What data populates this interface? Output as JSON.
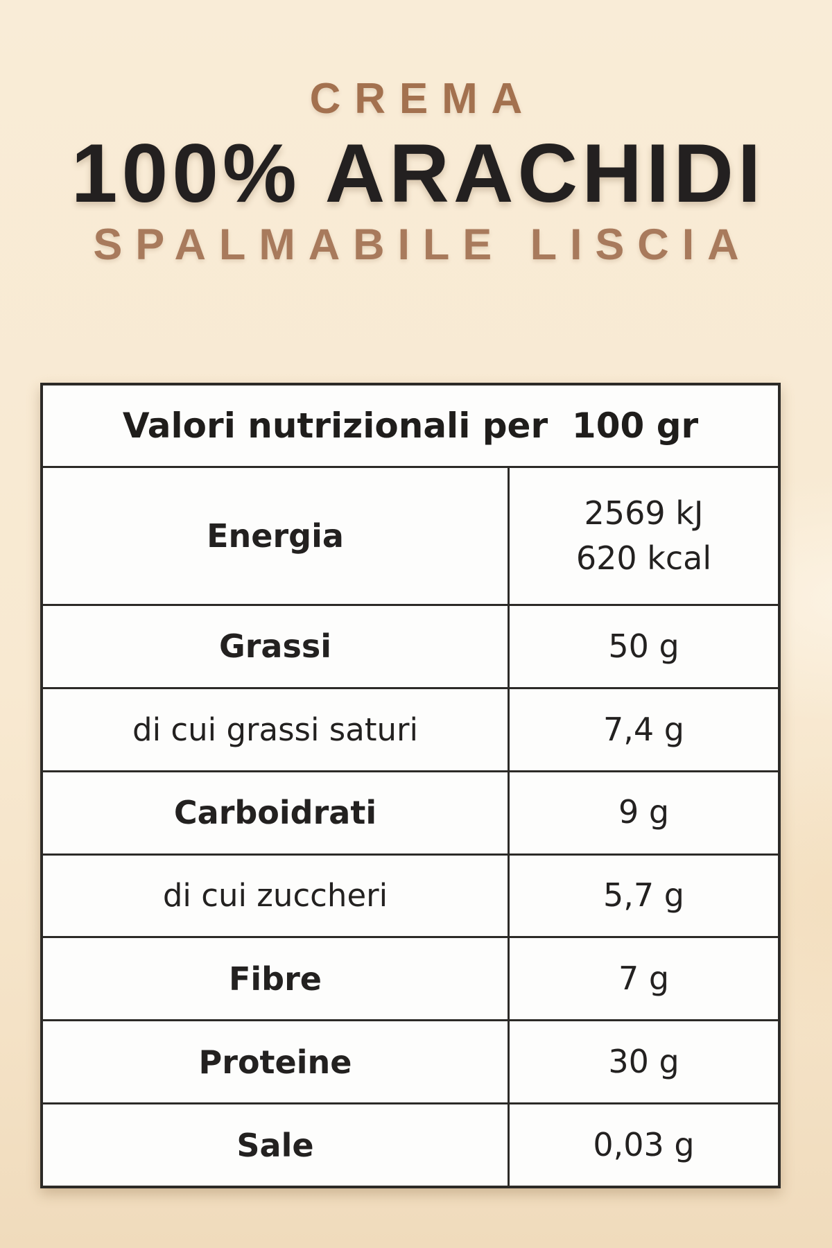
{
  "product": {
    "kicker": "CREMA",
    "headline": "100% ARACHIDI",
    "subline": "SPALMABILE LISCIA"
  },
  "nutrition_table": {
    "header": "Valori nutrizionali per  100 gr",
    "rows": [
      {
        "label": "Energia",
        "value": "2569 kJ\n620 kcal"
      },
      {
        "label": "Grassi",
        "value": "50 g"
      },
      {
        "label": "di cui grassi saturi",
        "value": "7,4 g"
      },
      {
        "label": "Carboidrati",
        "value": "9 g"
      },
      {
        "label": "di cui zuccheri",
        "value": "5,7 g"
      },
      {
        "label": "Fibre",
        "value": "7 g"
      },
      {
        "label": "Proteine",
        "value": "30 g"
      },
      {
        "label": "Sale",
        "value": "0,03 g"
      }
    ]
  },
  "colors": {
    "background_cream": "#f8e9d1",
    "accent_brown": "#a87a5c",
    "title_dark": "#232020",
    "table_line": "#2c2a27",
    "cell_background": "#fdfdfc"
  }
}
